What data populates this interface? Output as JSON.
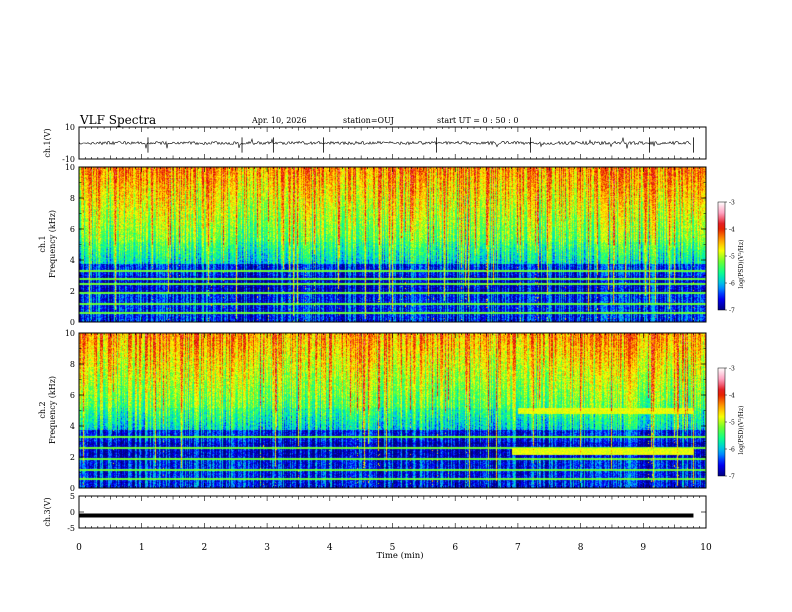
{
  "header": {
    "title": "VLF Spectra",
    "date": "Apr. 10, 2026",
    "station": "station=OUJ",
    "start": "start  UT =   0 : 50 : 0"
  },
  "colors": {
    "spectrogram_scale": [
      "#000080",
      "#0000ff",
      "#00aaff",
      "#00ff99",
      "#66ff33",
      "#ffff00",
      "#ff8800",
      "#dd0000",
      "#ff99bb",
      "#ffffff"
    ],
    "trace": "#000000"
  },
  "chart_data": [
    {
      "type": "line",
      "name": "ch1-waveform",
      "ylabel": "ch.1(V)",
      "ylim": [
        -10,
        10
      ],
      "yticks": [
        "10",
        "-10"
      ],
      "xlim": [
        0,
        10
      ],
      "baseline": 0,
      "amplitude": 1,
      "grid": false
    },
    {
      "type": "heatmap",
      "name": "ch1-spectrogram",
      "ylabel": "ch.1\nFrequency (kHz)",
      "ylim": [
        0,
        10
      ],
      "xlim": [
        0,
        10
      ],
      "yticks": [
        "0",
        "2",
        "4",
        "6",
        "8",
        "10"
      ],
      "colorbar": {
        "label": "log(PSD)(V²/Hz)",
        "range": [
          -7,
          -3
        ],
        "ticks": [
          "-3",
          "-4",
          "-5",
          "-6",
          "-7"
        ]
      },
      "narrowband_lines_khz": [
        0.6,
        1.2,
        1.9,
        2.5,
        2.8,
        3.3
      ],
      "emissions": []
    },
    {
      "type": "heatmap",
      "name": "ch2-spectrogram",
      "ylabel": "ch.2\nFrequency (kHz)",
      "ylim": [
        0,
        10
      ],
      "xlim": [
        0,
        10
      ],
      "yticks": [
        "0",
        "2",
        "4",
        "6",
        "8",
        "10"
      ],
      "colorbar": {
        "label": "log(PSD)(V²/Hz)",
        "range": [
          -7,
          -3
        ],
        "ticks": [
          "-3",
          "-4",
          "-5",
          "-6",
          "-7"
        ]
      },
      "narrowband_lines_khz": [
        0.6,
        1.2,
        1.9,
        2.6,
        3.3
      ],
      "emissions": [
        {
          "t_start": 7.0,
          "t_end": 9.8,
          "freq_khz": 5.0
        },
        {
          "t_start": 6.9,
          "t_end": 9.8,
          "freq_khz": 2.4
        }
      ]
    },
    {
      "type": "line",
      "name": "ch3-trace",
      "ylabel": "ch.3(V)",
      "ylim": [
        -5,
        5
      ],
      "yticks": [
        "5",
        "0",
        "-5"
      ],
      "xlim": [
        0,
        10
      ],
      "xlabel": "Time (min)",
      "xticks": [
        "0",
        "1",
        "2",
        "3",
        "4",
        "5",
        "6",
        "7",
        "8",
        "9",
        "10"
      ],
      "baseline": -1.1
    }
  ]
}
